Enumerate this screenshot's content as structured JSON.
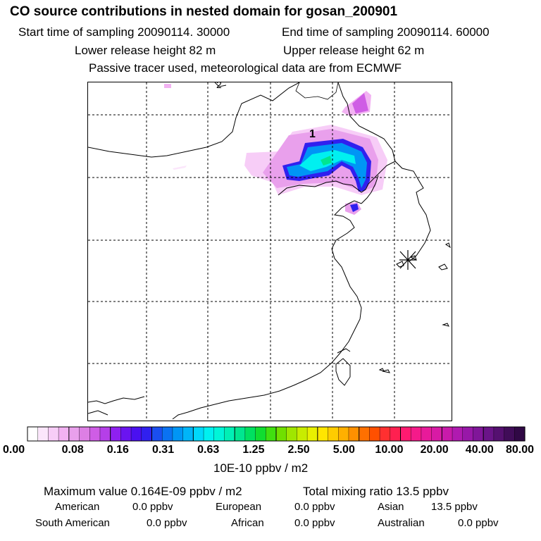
{
  "header": {
    "title": "CO  source contributions in nested domain for gosan_200901",
    "start_time": "Start time of sampling 20090114. 30000",
    "end_time": "End time of sampling 20090114. 60000",
    "lower_height": "Lower release height   82 m",
    "upper_height": "Upper release height   62 m",
    "tracer_note": "Passive tracer used, meteorological data are from ECMWF"
  },
  "map": {
    "contour_label": "1",
    "edge_label": "2",
    "receptor_symbol": "*"
  },
  "colorbar": {
    "unit": "10E-10 ppbv / m2",
    "ticks": [
      "0.00",
      "0.08",
      "0.16",
      "0.31",
      "0.63",
      "1.25",
      "2.50",
      "5.00",
      "10.00",
      "20.00",
      "40.00",
      "80.00"
    ],
    "colors": [
      "#ffffff",
      "#fbe6fb",
      "#f7cdf7",
      "#f2b2f2",
      "#e9a0ec",
      "#dd7fe4",
      "#cf5de5",
      "#b53fe8",
      "#8f20f0",
      "#6a14f0",
      "#4a10f0",
      "#3020ef",
      "#1a4ef0",
      "#0a72f2",
      "#0095f5",
      "#00b5f8",
      "#00d8fa",
      "#00f0f0",
      "#00f5d8",
      "#00f0b5",
      "#00e690",
      "#00e060",
      "#10dd30",
      "#40e010",
      "#70e000",
      "#a0e600",
      "#c8ec00",
      "#e8f000",
      "#ffe600",
      "#ffcc00",
      "#ffb000",
      "#ff9000",
      "#ff7000",
      "#ff5000",
      "#ff3030",
      "#ff2050",
      "#ff1a70",
      "#f51a8a",
      "#e81a9a",
      "#d81aa5",
      "#c81aaa",
      "#b01ab0",
      "#9818a8",
      "#801699",
      "#6a1488",
      "#551070",
      "#400c58",
      "#300845"
    ]
  },
  "stats": {
    "max_value": "Maximum value  0.164E-09 ppbv / m2",
    "total_mixing": "Total mixing ratio       13.5 ppbv",
    "regions": [
      {
        "name": "American",
        "value": "0.0 ppbv"
      },
      {
        "name": "European",
        "value": "0.0 ppbv"
      },
      {
        "name": "Asian",
        "value": "13.5 ppbv"
      },
      {
        "name": "South American",
        "value": "0.0 ppbv"
      },
      {
        "name": "African",
        "value": "0.0 ppbv"
      },
      {
        "name": "Australian",
        "value": "0.0 ppbv"
      }
    ]
  }
}
